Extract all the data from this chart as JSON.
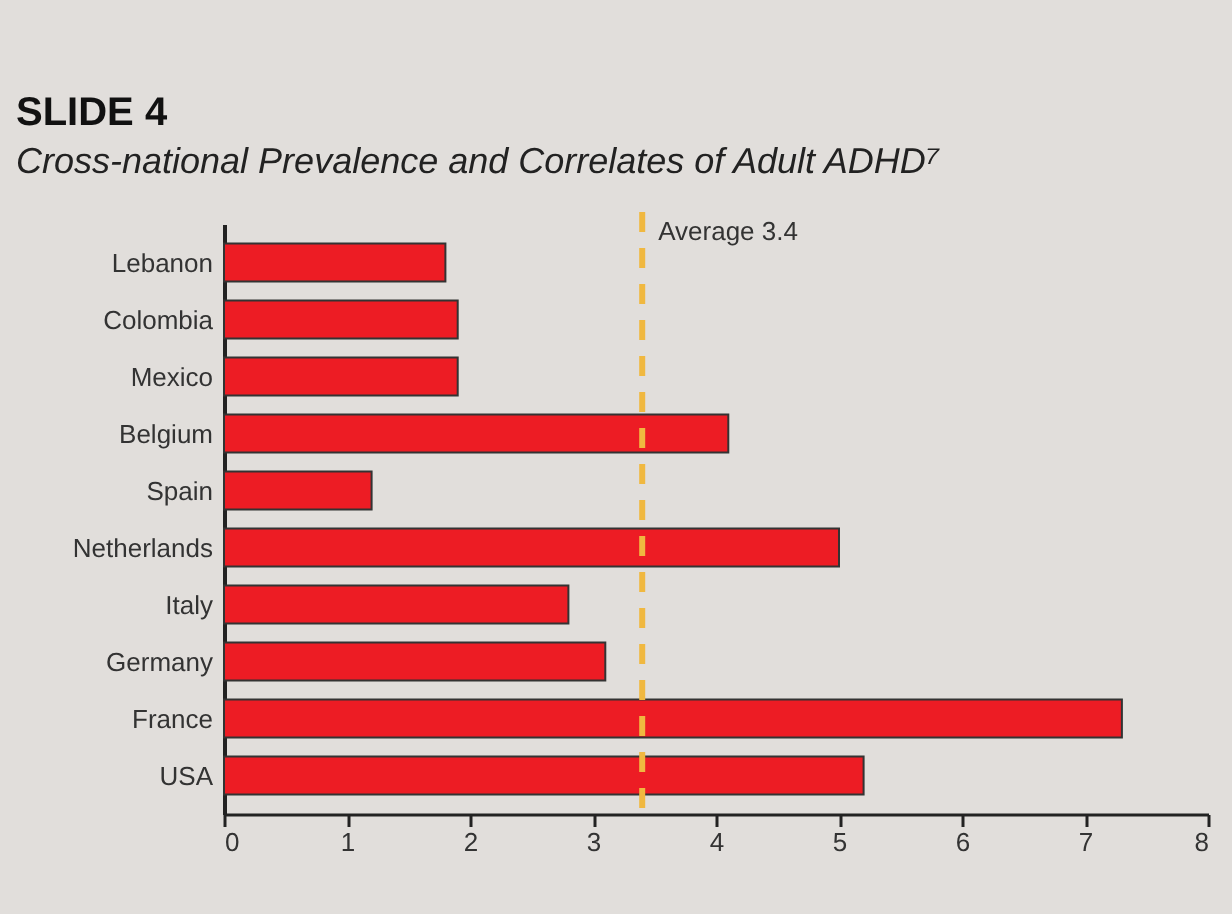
{
  "chart_data": {
    "type": "bar",
    "orientation": "horizontal",
    "title": "SLIDE 4",
    "subtitle": "Cross-national Prevalence and Correlates of Adult ADHD⁷",
    "categories": [
      "Lebanon",
      "Colombia",
      "Mexico",
      "Belgium",
      "Spain",
      "Netherlands",
      "Italy",
      "Germany",
      "France",
      "USA"
    ],
    "values": [
      1.8,
      1.9,
      1.9,
      4.1,
      1.2,
      5.0,
      2.8,
      3.1,
      7.3,
      5.2
    ],
    "color": "#ed1c24",
    "xlim": [
      0,
      8
    ],
    "xticks": [
      0,
      1,
      2,
      3,
      4,
      5,
      6,
      7,
      8
    ],
    "ref_lines": [
      {
        "axis": "x",
        "value": 3.4,
        "label": "Average 3.4",
        "color": "#f0b840",
        "line_style": "dashed"
      }
    ]
  }
}
